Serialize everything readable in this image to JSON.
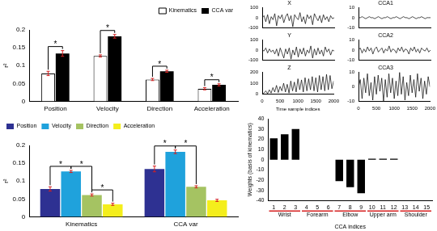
{
  "chart_data": [
    {
      "type": "bar",
      "categories": [
        "Position",
        "Velocity",
        "Direction",
        "Acceleration"
      ],
      "series": [
        {
          "name": "Kinematics",
          "color": "#ffffff",
          "values": [
            0.078,
            0.127,
            0.061,
            0.035
          ],
          "errors": [
            0.006,
            0.003,
            0.003,
            0.003
          ]
        },
        {
          "name": "CCA var",
          "color": "#000000",
          "values": [
            0.134,
            0.182,
            0.084,
            0.046
          ],
          "errors": [
            0.008,
            0.005,
            0.003,
            0.003
          ]
        }
      ],
      "y_label": "r²",
      "ylim": [
        0,
        0.2
      ],
      "yticks": [
        0,
        0.05,
        0.1,
        0.15,
        0.2
      ],
      "legend": "top-right",
      "significance": [
        {
          "category": "Position",
          "between": [
            "Kinematics",
            "CCA var"
          ],
          "label": "*"
        },
        {
          "category": "Velocity",
          "between": [
            "Kinematics",
            "CCA var"
          ],
          "label": "*"
        },
        {
          "category": "Direction",
          "between": [
            "Kinematics",
            "CCA var"
          ],
          "label": "*"
        },
        {
          "category": "Acceleration",
          "between": [
            "Kinematics",
            "CCA var"
          ],
          "label": "*"
        }
      ]
    },
    {
      "type": "bar",
      "categories": [
        "Kinematics",
        "CCA var"
      ],
      "series": [
        {
          "name": "Position",
          "color": "#2e3192",
          "values": [
            0.078,
            0.134
          ],
          "errors": [
            0.006,
            0.008
          ]
        },
        {
          "name": "Velocity",
          "color": "#1fa2dc",
          "values": [
            0.127,
            0.182
          ],
          "errors": [
            0.003,
            0.005
          ]
        },
        {
          "name": "Direction",
          "color": "#a5c362",
          "values": [
            0.061,
            0.084
          ],
          "errors": [
            0.003,
            0.003
          ]
        },
        {
          "name": "Acceleration",
          "color": "#f4ee1c",
          "values": [
            0.035,
            0.046
          ],
          "errors": [
            0.003,
            0.003
          ]
        }
      ],
      "y_label": "r²",
      "ylim": [
        0,
        0.2
      ],
      "yticks": [
        0,
        0.05,
        0.1,
        0.15,
        0.2
      ],
      "legend": "top-left",
      "significance": [
        {
          "category": "Kinematics",
          "between": [
            "Position",
            "Velocity"
          ],
          "label": "*"
        },
        {
          "category": "Kinematics",
          "between": [
            "Velocity",
            "Direction"
          ],
          "label": "*"
        },
        {
          "category": "Kinematics",
          "between": [
            "Direction",
            "Acceleration"
          ],
          "label": "*"
        },
        {
          "category": "CCA var",
          "between": [
            "Position",
            "Velocity"
          ],
          "label": "*"
        },
        {
          "category": "CCA var",
          "between": [
            "Velocity",
            "Direction"
          ],
          "label": "*"
        }
      ]
    },
    {
      "type": "line",
      "title": "X",
      "color": "#000000",
      "x": [
        0,
        50,
        100,
        150,
        200,
        250,
        300,
        350,
        400,
        450,
        500,
        550,
        600,
        650,
        700,
        750,
        800,
        850,
        900,
        950,
        1000,
        1050,
        1100,
        1150,
        1200,
        1250,
        1300,
        1350,
        1400,
        1450,
        1500,
        1550,
        1600,
        1650,
        1700,
        1750,
        1800,
        1850,
        1900,
        1950,
        2000
      ],
      "values": [
        0,
        20,
        -40,
        30,
        -60,
        10,
        -20,
        40,
        -80,
        20,
        -10,
        30,
        -50,
        10,
        40,
        -30,
        20,
        -90,
        30,
        0,
        -20,
        50,
        -40,
        10,
        -60,
        30,
        -10,
        20,
        -70,
        40,
        0,
        -30,
        20,
        -50,
        30,
        -20,
        10,
        -40,
        20,
        -10,
        0
      ],
      "xlim": [
        0,
        2000
      ],
      "xticks": [
        0,
        500,
        1000,
        1500,
        2000
      ],
      "ylim": [
        -100,
        100
      ],
      "yticks": [
        -100,
        0,
        100
      ],
      "tick_labels": "y"
    },
    {
      "type": "line",
      "title": "CCA1",
      "color": "#000000",
      "x": [
        0,
        50,
        100,
        150,
        200,
        250,
        300,
        350,
        400,
        450,
        500,
        550,
        600,
        650,
        700,
        750,
        800,
        850,
        900,
        950,
        1000,
        1050,
        1100,
        1150,
        1200,
        1250,
        1300,
        1350,
        1400,
        1450,
        1500,
        1550,
        1600,
        1650,
        1700,
        1750,
        1800,
        1850,
        1900,
        1950,
        2000
      ],
      "values": [
        0,
        0,
        1,
        0,
        -1,
        0,
        1,
        0,
        0,
        -1,
        0,
        1,
        0,
        -1,
        0,
        0,
        1,
        0,
        -1,
        0,
        0,
        1,
        0,
        -1,
        0,
        1,
        0,
        0,
        -1,
        0,
        1,
        0,
        -1,
        0,
        0,
        1,
        0,
        -1,
        0,
        0,
        0
      ],
      "xlim": [
        0,
        2000
      ],
      "xticks": [
        0,
        500,
        1000,
        1500,
        2000
      ],
      "ylim": [
        -10,
        10
      ],
      "yticks": [
        -10,
        0,
        10
      ],
      "tick_labels": "y"
    },
    {
      "type": "line",
      "title": "Y",
      "color": "#000000",
      "x": [
        0,
        50,
        100,
        150,
        200,
        250,
        300,
        350,
        400,
        450,
        500,
        550,
        600,
        650,
        700,
        750,
        800,
        850,
        900,
        950,
        1000,
        1050,
        1100,
        1150,
        1200,
        1250,
        1300,
        1350,
        1400,
        1450,
        1500,
        1550,
        1600,
        1650,
        1700,
        1750,
        1800,
        1850,
        1900,
        1950,
        2000
      ],
      "values": [
        0,
        -10,
        20,
        -30,
        10,
        -20,
        0,
        -40,
        10,
        -60,
        20,
        -30,
        -80,
        10,
        -40,
        20,
        -90,
        0,
        -50,
        30,
        -70,
        10,
        -40,
        20,
        -60,
        0,
        -30,
        40,
        -80,
        10,
        -50,
        20,
        -40,
        0,
        -60,
        30,
        -20,
        10,
        -50,
        0,
        -10
      ],
      "xlim": [
        0,
        2000
      ],
      "xticks": [
        0,
        500,
        1000,
        1500,
        2000
      ],
      "ylim": [
        -100,
        100
      ],
      "yticks": [
        -100,
        0,
        100
      ],
      "tick_labels": "y"
    },
    {
      "type": "line",
      "title": "CCA2",
      "color": "#000000",
      "x": [
        0,
        50,
        100,
        150,
        200,
        250,
        300,
        350,
        400,
        450,
        500,
        550,
        600,
        650,
        700,
        750,
        800,
        850,
        900,
        950,
        1000,
        1050,
        1100,
        1150,
        1200,
        1250,
        1300,
        1350,
        1400,
        1450,
        1500,
        1550,
        1600,
        1650,
        1700,
        1750,
        1800,
        1850,
        1900,
        1950,
        2000
      ],
      "values": [
        0,
        2,
        -3,
        1,
        -2,
        3,
        -1,
        2,
        -4,
        1,
        3,
        -2,
        0,
        2,
        -3,
        1,
        -1,
        4,
        -2,
        1,
        0,
        -3,
        2,
        -1,
        3,
        -2,
        1,
        0,
        -4,
        2,
        -1,
        3,
        -2,
        1,
        -3,
        2,
        0,
        -1,
        2,
        -2,
        0
      ],
      "xlim": [
        0,
        2000
      ],
      "xticks": [
        0,
        500,
        1000,
        1500,
        2000
      ],
      "ylim": [
        -10,
        10
      ],
      "yticks": [
        -10,
        0,
        10
      ],
      "tick_labels": "y"
    },
    {
      "type": "line",
      "title": "Z",
      "color": "#000000",
      "x": [
        0,
        50,
        100,
        150,
        200,
        250,
        300,
        350,
        400,
        450,
        500,
        550,
        600,
        650,
        700,
        750,
        800,
        850,
        900,
        950,
        1000,
        1050,
        1100,
        1150,
        1200,
        1250,
        1300,
        1350,
        1400,
        1450,
        1500,
        1550,
        1600,
        1650,
        1700,
        1750,
        1800,
        1850,
        1900,
        1950,
        2000
      ],
      "values": [
        0,
        10,
        30,
        5,
        40,
        10,
        60,
        20,
        80,
        15,
        70,
        30,
        100,
        20,
        90,
        10,
        120,
        30,
        110,
        20,
        140,
        40,
        130,
        20,
        150,
        30,
        140,
        40,
        160,
        30,
        150,
        20,
        170,
        40,
        160,
        30,
        180,
        40,
        170,
        50,
        120
      ],
      "x_label": "Time sample indices",
      "xlim": [
        0,
        2000
      ],
      "xticks": [
        0,
        500,
        1000,
        1500,
        2000
      ],
      "ylim": [
        0,
        200
      ],
      "yticks": [
        0,
        100,
        200
      ]
    },
    {
      "type": "line",
      "title": "CCA3",
      "color": "#000000",
      "x": [
        0,
        50,
        100,
        150,
        200,
        250,
        300,
        350,
        400,
        450,
        500,
        550,
        600,
        650,
        700,
        750,
        800,
        850,
        900,
        950,
        1000,
        1050,
        1100,
        1150,
        1200,
        1250,
        1300,
        1350,
        1400,
        1450,
        1500,
        1550,
        1600,
        1650,
        1700,
        1750,
        1800,
        1850,
        1900,
        1950,
        2000
      ],
      "values": [
        0,
        5,
        -8,
        6,
        -4,
        9,
        -6,
        3,
        -9,
        7,
        -5,
        8,
        -3,
        6,
        -10,
        5,
        -7,
        9,
        -4,
        6,
        -8,
        4,
        -6,
        10,
        -5,
        7,
        -9,
        3,
        -6,
        8,
        -4,
        5,
        -7,
        9,
        -3,
        6,
        -8,
        4,
        -5,
        7,
        0
      ],
      "xlim": [
        0,
        2000
      ],
      "xticks": [
        0,
        500,
        1000,
        1500,
        2000
      ],
      "ylim": [
        -10,
        10
      ],
      "yticks": [
        -10,
        0,
        10
      ]
    },
    {
      "type": "bar",
      "categories": [
        "1",
        "2",
        "3",
        "4",
        "5",
        "6",
        "7",
        "8",
        "9",
        "10",
        "11",
        "12",
        "13",
        "14",
        "15"
      ],
      "values": [
        21,
        25,
        30,
        0,
        0,
        0,
        -21,
        -27,
        -33,
        1,
        1,
        1,
        0,
        0,
        0
      ],
      "color": "#000000",
      "x_label": "CCA indices",
      "y_label": "Weights (basis of kinematics)",
      "ylim": [
        -40,
        40
      ],
      "yticks": [
        -40,
        -30,
        -20,
        -10,
        0,
        10,
        20,
        30,
        40
      ],
      "groups": [
        {
          "label": "Wrist",
          "from": "1",
          "to": "3"
        },
        {
          "label": "Forearm",
          "from": "4",
          "to": "6"
        },
        {
          "label": "Elbow",
          "from": "7",
          "to": "9"
        },
        {
          "label": "Upper arm",
          "from": "10",
          "to": "12"
        },
        {
          "label": "Shoulder",
          "from": "13",
          "to": "15"
        }
      ]
    }
  ]
}
